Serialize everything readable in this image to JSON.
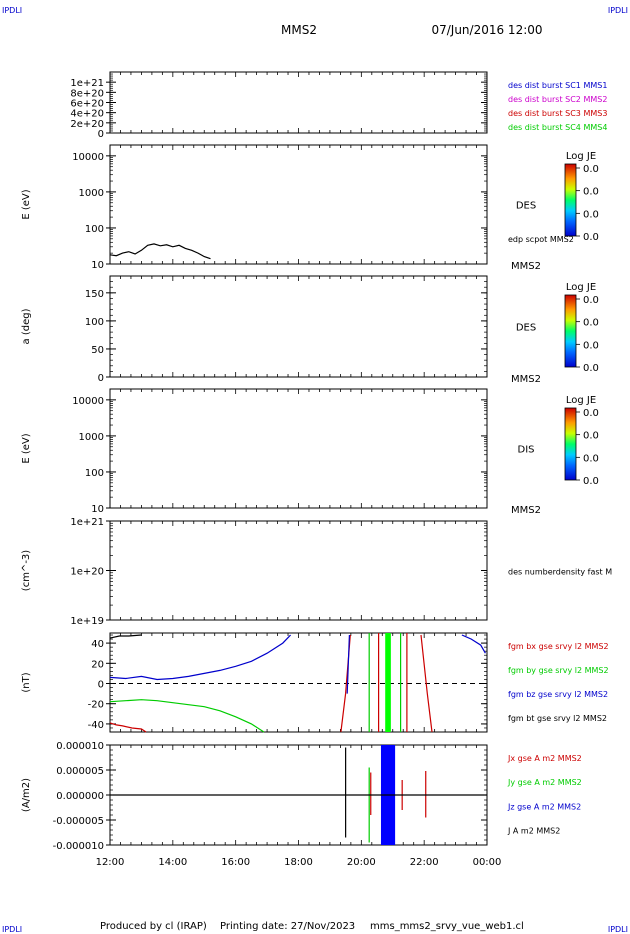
{
  "header": {
    "corner_left": "IPDLI",
    "corner_right": "IPDLI",
    "spacecraft": "MMS2",
    "datetime": "07/Jun/2016 12:00"
  },
  "footer": {
    "produced_by": "Produced by cl (IRAP)",
    "printing_date": "Printing date: 27/Nov/2023",
    "plot_name": "mms_mms2_srvy_vue_web1.cl",
    "corner_left": "IPDLI",
    "corner_right": "IPDLI"
  },
  "colors": {
    "blue": "#0000cc",
    "magenta": "#cc00cc",
    "red": "#cc0000",
    "green": "#00cc00",
    "black": "#000000",
    "bright_green": "#00ff00",
    "bright_blue": "#0000ff"
  },
  "time_axis": {
    "start_hour": 12,
    "end_hour": 24,
    "tick_labels": [
      "12:00",
      "14:00",
      "16:00",
      "18:00",
      "20:00",
      "22:00",
      "00:00"
    ]
  },
  "chart_data": [
    {
      "type": "line",
      "panel": "dist-burst",
      "ylabel": "",
      "ylim": [
        0,
        1.2e+21
      ],
      "y_ticks": [
        {
          "value": 0,
          "label": "0"
        },
        {
          "value": 2e+20,
          "label": "2e+20"
        },
        {
          "value": 4e+20,
          "label": "4e+20"
        },
        {
          "value": 6e+20,
          "label": "6e+20"
        },
        {
          "value": 8e+20,
          "label": "8e+20"
        },
        {
          "value": 1e+21,
          "label": "1e+21"
        }
      ],
      "zero_line": true,
      "legend": [
        {
          "label": "des dist burst SC1 MMS1",
          "color": "#0000cc"
        },
        {
          "label": "des dist burst SC2 MMS2",
          "color": "#cc00cc"
        },
        {
          "label": "des dist burst SC3 MMS3",
          "color": "#cc0000"
        },
        {
          "label": "des dist burst SC4 MMS4",
          "color": "#00cc00"
        }
      ],
      "series": []
    },
    {
      "type": "line",
      "panel": "des-energy",
      "ylabel": "E (eV)",
      "scale": "log",
      "ylim": [
        10,
        20000
      ],
      "y_ticks": [
        {
          "value": 10,
          "label": "10"
        },
        {
          "value": 100,
          "label": "100"
        },
        {
          "value": 1000,
          "label": "1000"
        },
        {
          "value": 10000,
          "label": "10000"
        }
      ],
      "side_label": "DES",
      "bottom_label": "MMS2",
      "legend": [
        {
          "label": "edp scpot MMS2",
          "color": "#000000"
        }
      ],
      "colorbar": {
        "title": "Log JE",
        "labels": [
          "0.0",
          "0.0",
          "0.0",
          "0.0"
        ]
      },
      "series": [
        {
          "color": "#000000",
          "x": [
            12.0,
            12.2,
            12.4,
            12.6,
            12.8,
            13.0,
            13.2,
            13.4,
            13.6,
            13.8,
            14.0,
            14.2,
            14.4,
            14.6,
            14.8,
            15.0,
            15.2
          ],
          "y": [
            18,
            17,
            20,
            22,
            19,
            24,
            33,
            36,
            32,
            34,
            30,
            33,
            27,
            24,
            20,
            16,
            14
          ]
        }
      ]
    },
    {
      "type": "heatmap",
      "panel": "des-pitch",
      "ylabel": "a (deg)",
      "ylim": [
        0,
        180
      ],
      "y_ticks": [
        {
          "value": 0,
          "label": "0"
        },
        {
          "value": 50,
          "label": "50"
        },
        {
          "value": 100,
          "label": "100"
        },
        {
          "value": 150,
          "label": "150"
        }
      ],
      "side_label": "DES",
      "bottom_label": "MMS2",
      "colorbar": {
        "title": "Log JE",
        "labels": [
          "0.0",
          "0.0",
          "0.0",
          "0.0"
        ]
      },
      "series": []
    },
    {
      "type": "heatmap",
      "panel": "dis-energy",
      "ylabel": "E (eV)",
      "scale": "log",
      "ylim": [
        10,
        20000
      ],
      "y_ticks": [
        {
          "value": 10,
          "label": "10"
        },
        {
          "value": 100,
          "label": "100"
        },
        {
          "value": 1000,
          "label": "1000"
        },
        {
          "value": 10000,
          "label": "10000"
        }
      ],
      "side_label": "DIS",
      "bottom_label": "MMS2",
      "colorbar": {
        "title": "Log JE",
        "labels": [
          "0.0",
          "0.0",
          "0.0",
          "0.0"
        ]
      },
      "series": []
    },
    {
      "type": "line",
      "panel": "number-density",
      "ylabel": "(cm^-3)",
      "scale": "log",
      "ylim": [
        1e+19,
        1e+21
      ],
      "y_ticks": [
        {
          "value": 1e+19,
          "label": "1e+19"
        },
        {
          "value": 1e+20,
          "label": "1e+20"
        },
        {
          "value": 1e+21,
          "label": "1e+21"
        }
      ],
      "legend": [
        {
          "label": "des numberdensity fast M",
          "color": "#000000"
        }
      ],
      "series": []
    },
    {
      "type": "line",
      "panel": "fgm",
      "ylabel": "(nT)",
      "ylim": [
        -48,
        50
      ],
      "y_ticks": [
        {
          "value": -40,
          "label": "-40"
        },
        {
          "value": -20,
          "label": "-20"
        },
        {
          "value": 0,
          "label": "0"
        },
        {
          "value": 20,
          "label": "20"
        },
        {
          "value": 40,
          "label": "40"
        }
      ],
      "zero_line": true,
      "legend": [
        {
          "label": "fgm bx gse srvy l2 MMS2",
          "color": "#cc0000"
        },
        {
          "label": "fgm by gse srvy l2 MMS2",
          "color": "#00cc00"
        },
        {
          "label": "fgm bz gse srvy l2 MMS2",
          "color": "#0000cc"
        },
        {
          "label": "fgm bt gse srvy l2 MMS2",
          "color": "#000000"
        }
      ],
      "series": [
        {
          "name": "bt",
          "color": "#000000",
          "x": [
            12.0,
            12.3,
            12.6,
            13.0
          ],
          "y": [
            45,
            47,
            47,
            48
          ]
        },
        {
          "name": "bx",
          "color": "#cc0000",
          "x": [
            12.0,
            12.2,
            12.4,
            12.7,
            13.0,
            13.15
          ],
          "y": [
            -39,
            -41,
            -42,
            -44,
            -45,
            -48
          ]
        },
        {
          "name": "by",
          "color": "#00cc00",
          "x": [
            12.0,
            12.5,
            13.0,
            13.5,
            14.0,
            14.5,
            15.0,
            15.5,
            16.0,
            16.5,
            16.9
          ],
          "y": [
            -18,
            -17,
            -16,
            -17,
            -19,
            -21,
            -23,
            -27,
            -33,
            -40,
            -48
          ]
        },
        {
          "name": "bz",
          "color": "#0000cc",
          "x": [
            12.0,
            12.5,
            13.0,
            13.5,
            14.0,
            14.5,
            15.0,
            15.5,
            16.0,
            16.5,
            17.0,
            17.5,
            17.75
          ],
          "y": [
            6,
            5,
            7,
            4,
            5,
            7,
            10,
            13,
            17,
            22,
            30,
            40,
            48
          ]
        },
        {
          "name": "bz-late",
          "color": "#0000cc",
          "x": [
            23.2,
            23.5,
            23.8,
            23.95
          ],
          "y": [
            48,
            44,
            38,
            30
          ]
        },
        {
          "name": "bx-rise",
          "color": "#cc0000",
          "x": [
            19.35,
            19.5,
            19.65
          ],
          "y": [
            -48,
            -10,
            48
          ]
        },
        {
          "name": "bx-fall",
          "color": "#cc0000",
          "x": [
            21.9,
            22.1,
            22.25
          ],
          "y": [
            48,
            -10,
            -48
          ]
        },
        {
          "name": "bz-spike",
          "color": "#0000cc",
          "x": [
            19.55,
            19.62
          ],
          "y": [
            -10,
            48
          ]
        }
      ],
      "spikes": [
        {
          "x": 20.25,
          "color": "#00cc00",
          "kind": "line"
        },
        {
          "x": 20.55,
          "color": "#cc0000",
          "kind": "line"
        },
        {
          "x": 20.85,
          "color": "#00ff00",
          "kind": "band",
          "width": 0.18
        },
        {
          "x": 21.25,
          "color": "#00cc00",
          "kind": "line"
        },
        {
          "x": 21.45,
          "color": "#cc0000",
          "kind": "line"
        }
      ]
    },
    {
      "type": "line",
      "panel": "current-density",
      "ylabel": "(A/m2)",
      "ylim": [
        -1e-05,
        1e-05
      ],
      "y_ticks": [
        {
          "value": -1e-05,
          "label": "-0.000010"
        },
        {
          "value": -5e-06,
          "label": "-0.000005"
        },
        {
          "value": 0,
          "label": "0.000000"
        },
        {
          "value": 5e-06,
          "label": "0.000005"
        },
        {
          "value": 1e-05,
          "label": "0.000010"
        }
      ],
      "legend": [
        {
          "label": "Jx gse A m2 MMS2",
          "color": "#cc0000"
        },
        {
          "label": "Jy gse A m2 MMS2",
          "color": "#00cc00"
        },
        {
          "label": "Jz gse A m2 MMS2",
          "color": "#0000cc"
        },
        {
          "label": "J A m2 MMS2",
          "color": "#000000"
        }
      ],
      "series": [
        {
          "name": "J-baseline",
          "color": "#000000",
          "x": [
            12.0,
            24.0
          ],
          "y": [
            0,
            0
          ]
        }
      ],
      "spikes": [
        {
          "x": 19.5,
          "ymin": -8.5e-06,
          "ymax": 9.5e-06,
          "color": "#000000",
          "kind": "line"
        },
        {
          "x": 20.25,
          "ymin": -9.5e-06,
          "ymax": 5.5e-06,
          "color": "#00cc00",
          "kind": "line"
        },
        {
          "x": 20.3,
          "ymin": -4e-06,
          "ymax": 4.5e-06,
          "color": "#cc0000",
          "kind": "line"
        },
        {
          "x": 20.85,
          "ymin": -1e-05,
          "ymax": 1e-05,
          "color": "#0000ff",
          "kind": "band",
          "width": 0.45
        },
        {
          "x": 21.3,
          "ymin": -3e-06,
          "ymax": 3e-06,
          "color": "#cc0000",
          "kind": "line"
        },
        {
          "x": 22.05,
          "ymin": -4.5e-06,
          "ymax": 4.8e-06,
          "color": "#cc0000",
          "kind": "line"
        }
      ]
    }
  ]
}
